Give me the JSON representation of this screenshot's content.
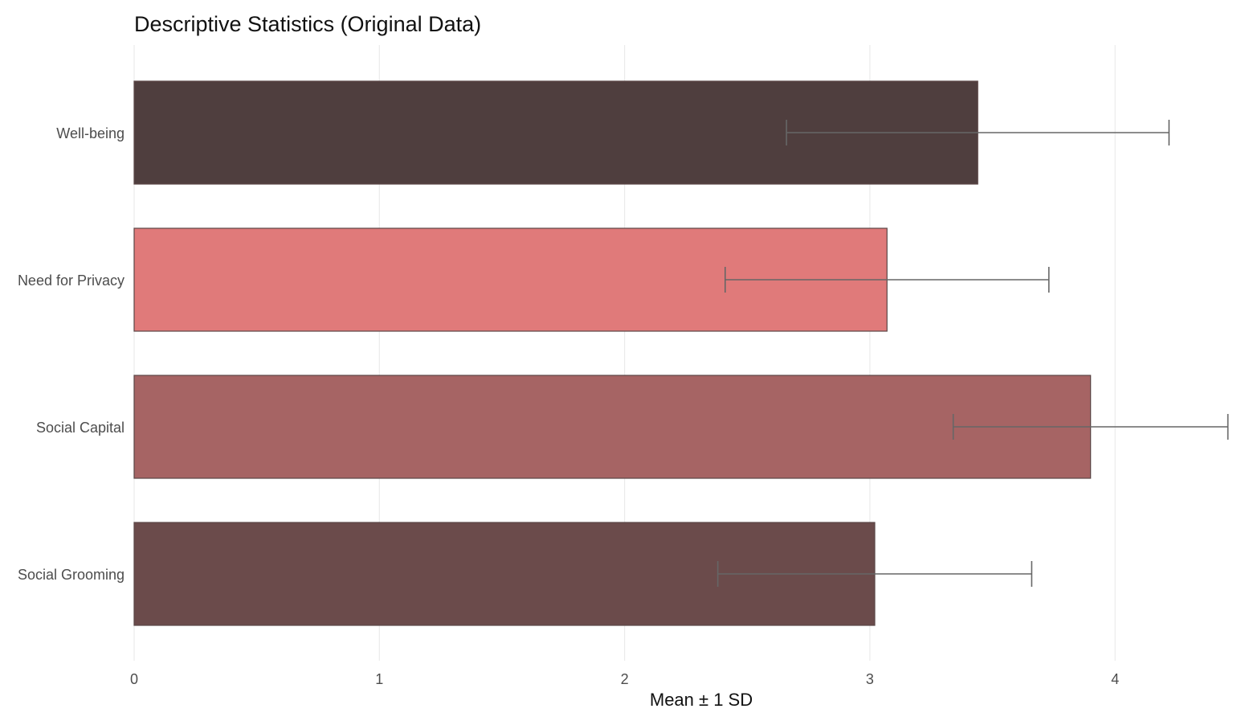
{
  "chart_data": {
    "type": "bar",
    "orientation": "horizontal",
    "title": "Descriptive Statistics (Original Data)",
    "xlabel": "Mean ± 1 SD",
    "ylabel": "",
    "xlim": [
      0,
      4.45
    ],
    "xticks": [
      0,
      1,
      2,
      3,
      4
    ],
    "grid": true,
    "legend": "none",
    "categories": [
      "Well-being",
      "Need for Privacy",
      "Social Capital",
      "Social Grooming"
    ],
    "values": [
      3.44,
      3.07,
      3.9,
      3.02
    ],
    "sd": [
      0.78,
      0.66,
      0.56,
      0.64
    ],
    "colors": [
      "#4f3e3e",
      "#e07a7a",
      "#a66464",
      "#6b4b4b"
    ],
    "error_bar_color": "#666666"
  }
}
